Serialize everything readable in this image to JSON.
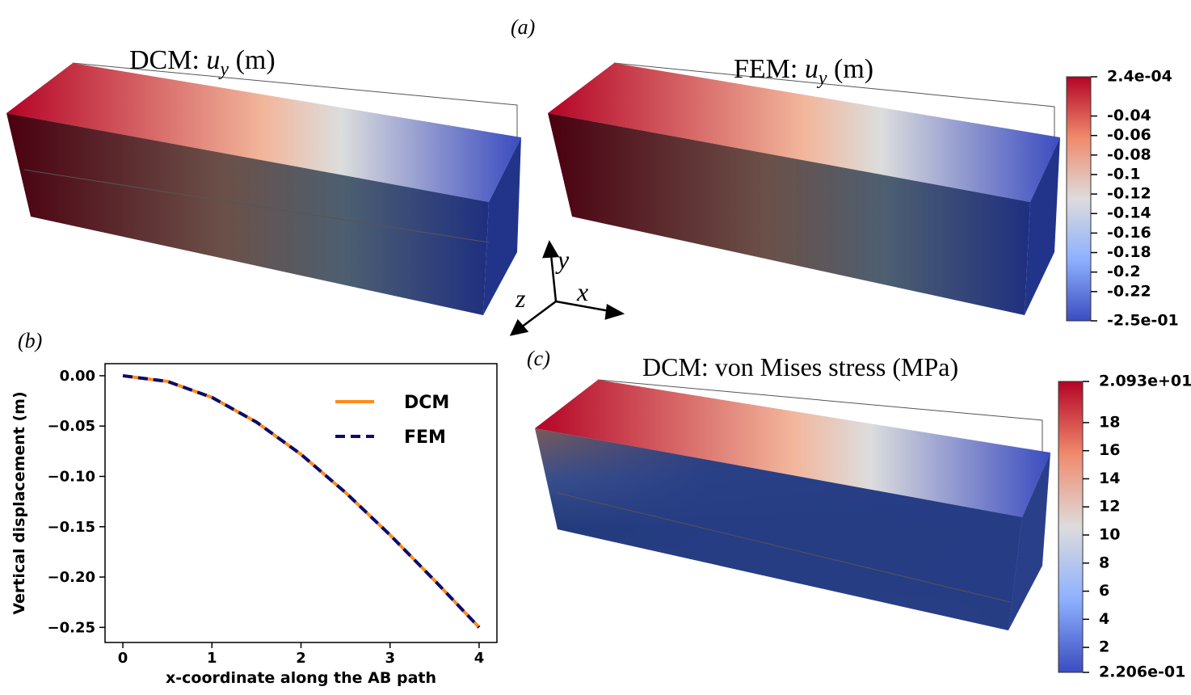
{
  "panel_labels": {
    "a": "(a)",
    "b": "(b)",
    "c": "(c)"
  },
  "renders": [
    {
      "label": "DCM:",
      "symbol": "u",
      "subscript": "y",
      "unit": "(m)"
    },
    {
      "label": "FEM:",
      "symbol": "u",
      "subscript": "y",
      "unit": "(m)"
    },
    {
      "title": "DCM: von Mises stress (MPa)"
    }
  ],
  "axes_triad": {
    "x": "x",
    "y": "y",
    "z": "z"
  },
  "colorbars": [
    {
      "range": [
        -0.25,
        0.00024
      ],
      "ticks": [
        {
          "value": 0.00024,
          "label": "2.4e-04"
        },
        -0.04,
        -0.06,
        -0.08,
        -0.1,
        -0.12,
        -0.14,
        -0.16,
        -0.18,
        -0.2,
        -0.22,
        {
          "value": -0.25,
          "label": "-2.5e-01"
        }
      ]
    },
    {
      "range": [
        0.2206,
        20.93
      ],
      "ticks": [
        {
          "value": 20.93,
          "label": "2.093e+01"
        },
        18,
        16,
        14,
        12,
        10,
        8,
        6,
        4,
        2,
        {
          "value": 0.2206,
          "label": "2.206e-01"
        }
      ]
    }
  ],
  "chart_data": {
    "type": "line",
    "xlabel": "x-coordinate along the AB path",
    "ylabel": "Vertical displacement (m)",
    "x": [
      0,
      0.5,
      1,
      1.5,
      2,
      2.5,
      3,
      3.5,
      4
    ],
    "series": [
      {
        "name": "DCM",
        "color": "#ff8c1a",
        "dash": false,
        "values": [
          0,
          -0.0056,
          -0.0215,
          -0.0461,
          -0.0781,
          -0.116,
          -0.1582,
          -0.2034,
          -0.25
        ]
      },
      {
        "name": "FEM",
        "color": "#0b0b6e",
        "dash": true,
        "values": [
          0,
          -0.0056,
          -0.0215,
          -0.0461,
          -0.0781,
          -0.116,
          -0.1582,
          -0.2034,
          -0.25
        ]
      }
    ],
    "xlim": [
      -0.2,
      4.2
    ],
    "ylim": [
      -0.265,
      0.012
    ],
    "xticks": [
      0,
      1,
      2,
      3,
      4
    ],
    "yticks": [
      {
        "value": 0,
        "label": "0.00"
      },
      {
        "value": -0.05,
        "label": "−0.05"
      },
      {
        "value": -0.1,
        "label": "−0.10"
      },
      {
        "value": -0.15,
        "label": "−0.15"
      },
      {
        "value": -0.2,
        "label": "−0.20"
      },
      {
        "value": -0.25,
        "label": "−0.25"
      }
    ],
    "legend": "upper right",
    "grid": false
  }
}
